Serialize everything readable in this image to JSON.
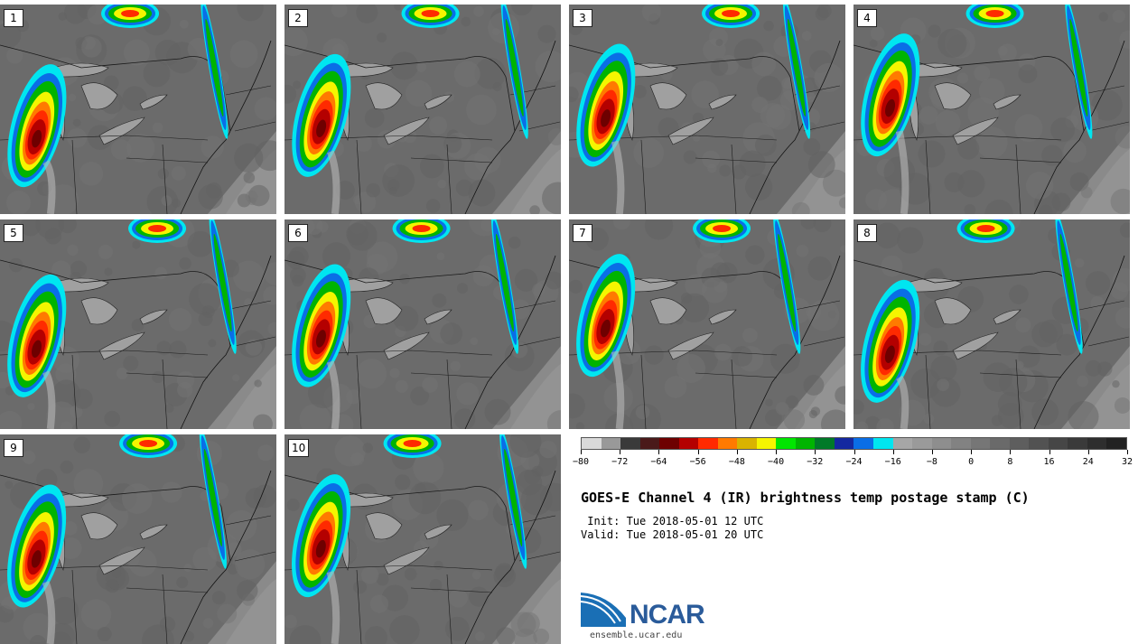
{
  "members": [
    {
      "label": "1"
    },
    {
      "label": "2"
    },
    {
      "label": "3"
    },
    {
      "label": "4"
    },
    {
      "label": "5"
    },
    {
      "label": "6"
    },
    {
      "label": "7"
    },
    {
      "label": "8"
    },
    {
      "label": "9"
    },
    {
      "label": "10"
    }
  ],
  "colorbar": {
    "colors": [
      "#d9d9d9",
      "#999999",
      "#3a3a3a",
      "#4a1a1a",
      "#6e0000",
      "#b40000",
      "#ff2a00",
      "#ff7a00",
      "#d9b300",
      "#f5f500",
      "#00e600",
      "#00b400",
      "#007a28",
      "#1428a0",
      "#0a6ee6",
      "#00e6f0",
      "#a6a6a6",
      "#9a9a9a",
      "#8e8e8e",
      "#828282",
      "#767676",
      "#6a6a6a",
      "#5e5e5e",
      "#525252",
      "#464646",
      "#3a3a3a",
      "#2e2e2e",
      "#222222"
    ],
    "ticks": [
      "-80",
      "-72",
      "-64",
      "-56",
      "-48",
      "-40",
      "-32",
      "-24",
      "-16",
      "-8",
      "0",
      "8",
      "16",
      "24",
      "32"
    ],
    "tick_positions": [
      0,
      2,
      4,
      6,
      8,
      10,
      12,
      14,
      16,
      18,
      20,
      22,
      24,
      26,
      28
    ]
  },
  "title": "GOES-E Channel 4 (IR) brightness temp postage stamp (C)",
  "init_line": " Init: Tue 2018-05-01 12 UTC",
  "valid_line": "Valid: Tue 2018-05-01 20 UTC",
  "logo_text": "NCAR",
  "url": "ensemble.ucar.edu"
}
